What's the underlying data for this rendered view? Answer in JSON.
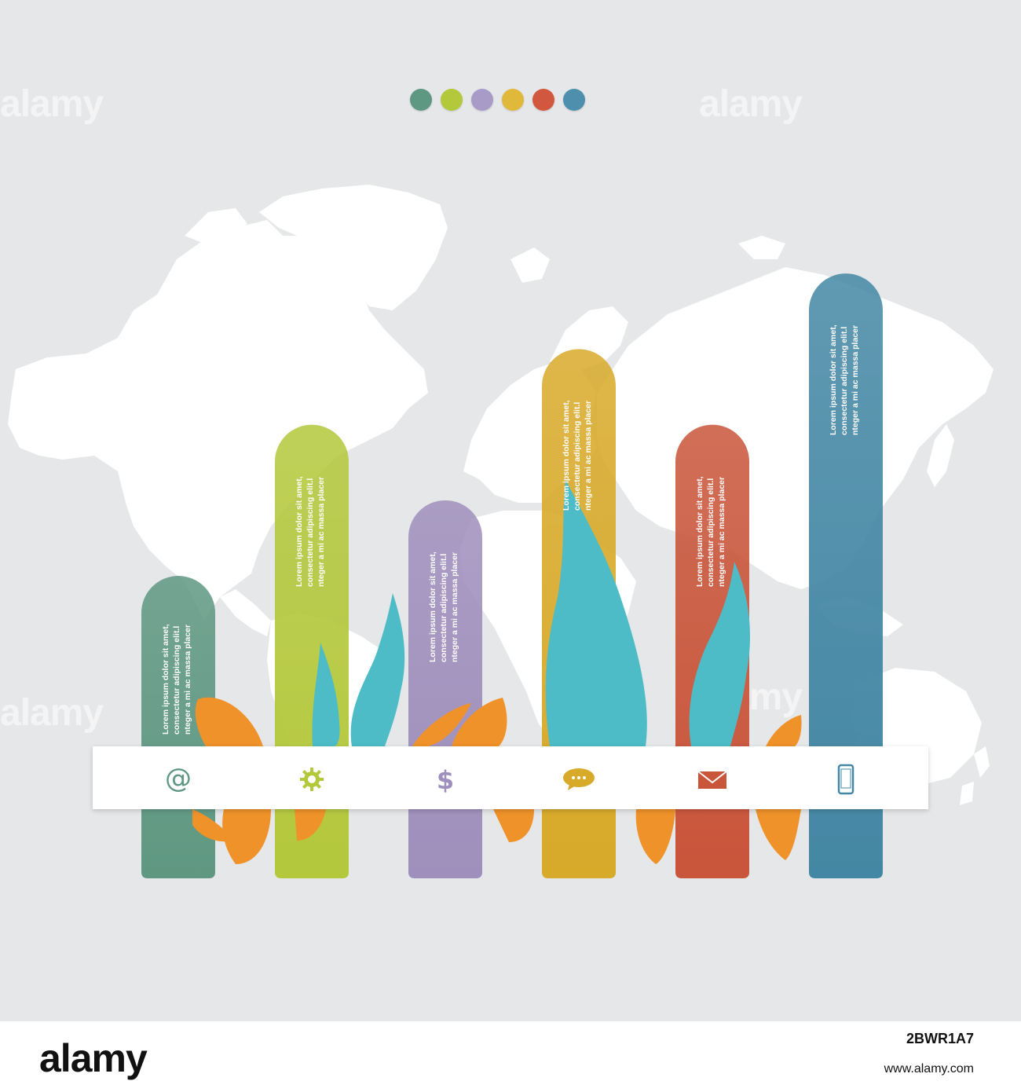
{
  "watermark_text": "alamy",
  "colors": {
    "background": "#e6e7e9",
    "map": "#ffffff",
    "leaf_teal": "#4dbcc6",
    "leaf_orange": "#f0922a"
  },
  "chart_data": {
    "type": "bar",
    "categories": [
      "@",
      "gear",
      "$",
      "chat",
      "mail",
      "phone"
    ],
    "values": [
      40,
      60,
      50,
      70,
      60,
      80
    ],
    "ylim": [
      0,
      85
    ],
    "series": [
      {
        "values": [
          40,
          60,
          50,
          70,
          60,
          80
        ],
        "colors": [
          "#5f9882",
          "#b4c83c",
          "#9f8fbc",
          "#d8aa2a",
          "#c9553a",
          "#4487a4"
        ]
      }
    ],
    "bar_labels": [
      "Lorem ipsum dolor sit amet,|consectetur adipiscing elit.l|nteger a mi ac massa placer",
      "Lorem ipsum dolor sit amet,|consectetur adipiscing elit.l|nteger a mi ac massa placer",
      "Lorem ipsum dolor sit amet,|consectetur adipiscing elit.l|nteger a mi ac massa placer",
      "Lorem ipsum dolor sit amet,|consectetur adipiscing elit.l|nteger a mi ac massa placer",
      "Lorem ipsum dolor sit amet,|consectetur adipiscing elit.l|nteger a mi ac massa placer",
      "Lorem ipsum dolor sit amet,|consectetur adipiscing elit.l|nteger a mi ac massa placer"
    ],
    "legend_dots": [
      "#5f9882",
      "#b4c83c",
      "#a99bc8",
      "#e0b83a",
      "#d2573f",
      "#4f8fae"
    ],
    "icons": [
      "at-icon",
      "gear-icon",
      "dollar-icon",
      "chat-icon",
      "mail-icon",
      "phone-icon"
    ],
    "grid": false,
    "legend": "top-center"
  },
  "footer": {
    "logo": "alamy",
    "image_id": "2BWR1A7",
    "url": "www.alamy.com"
  }
}
